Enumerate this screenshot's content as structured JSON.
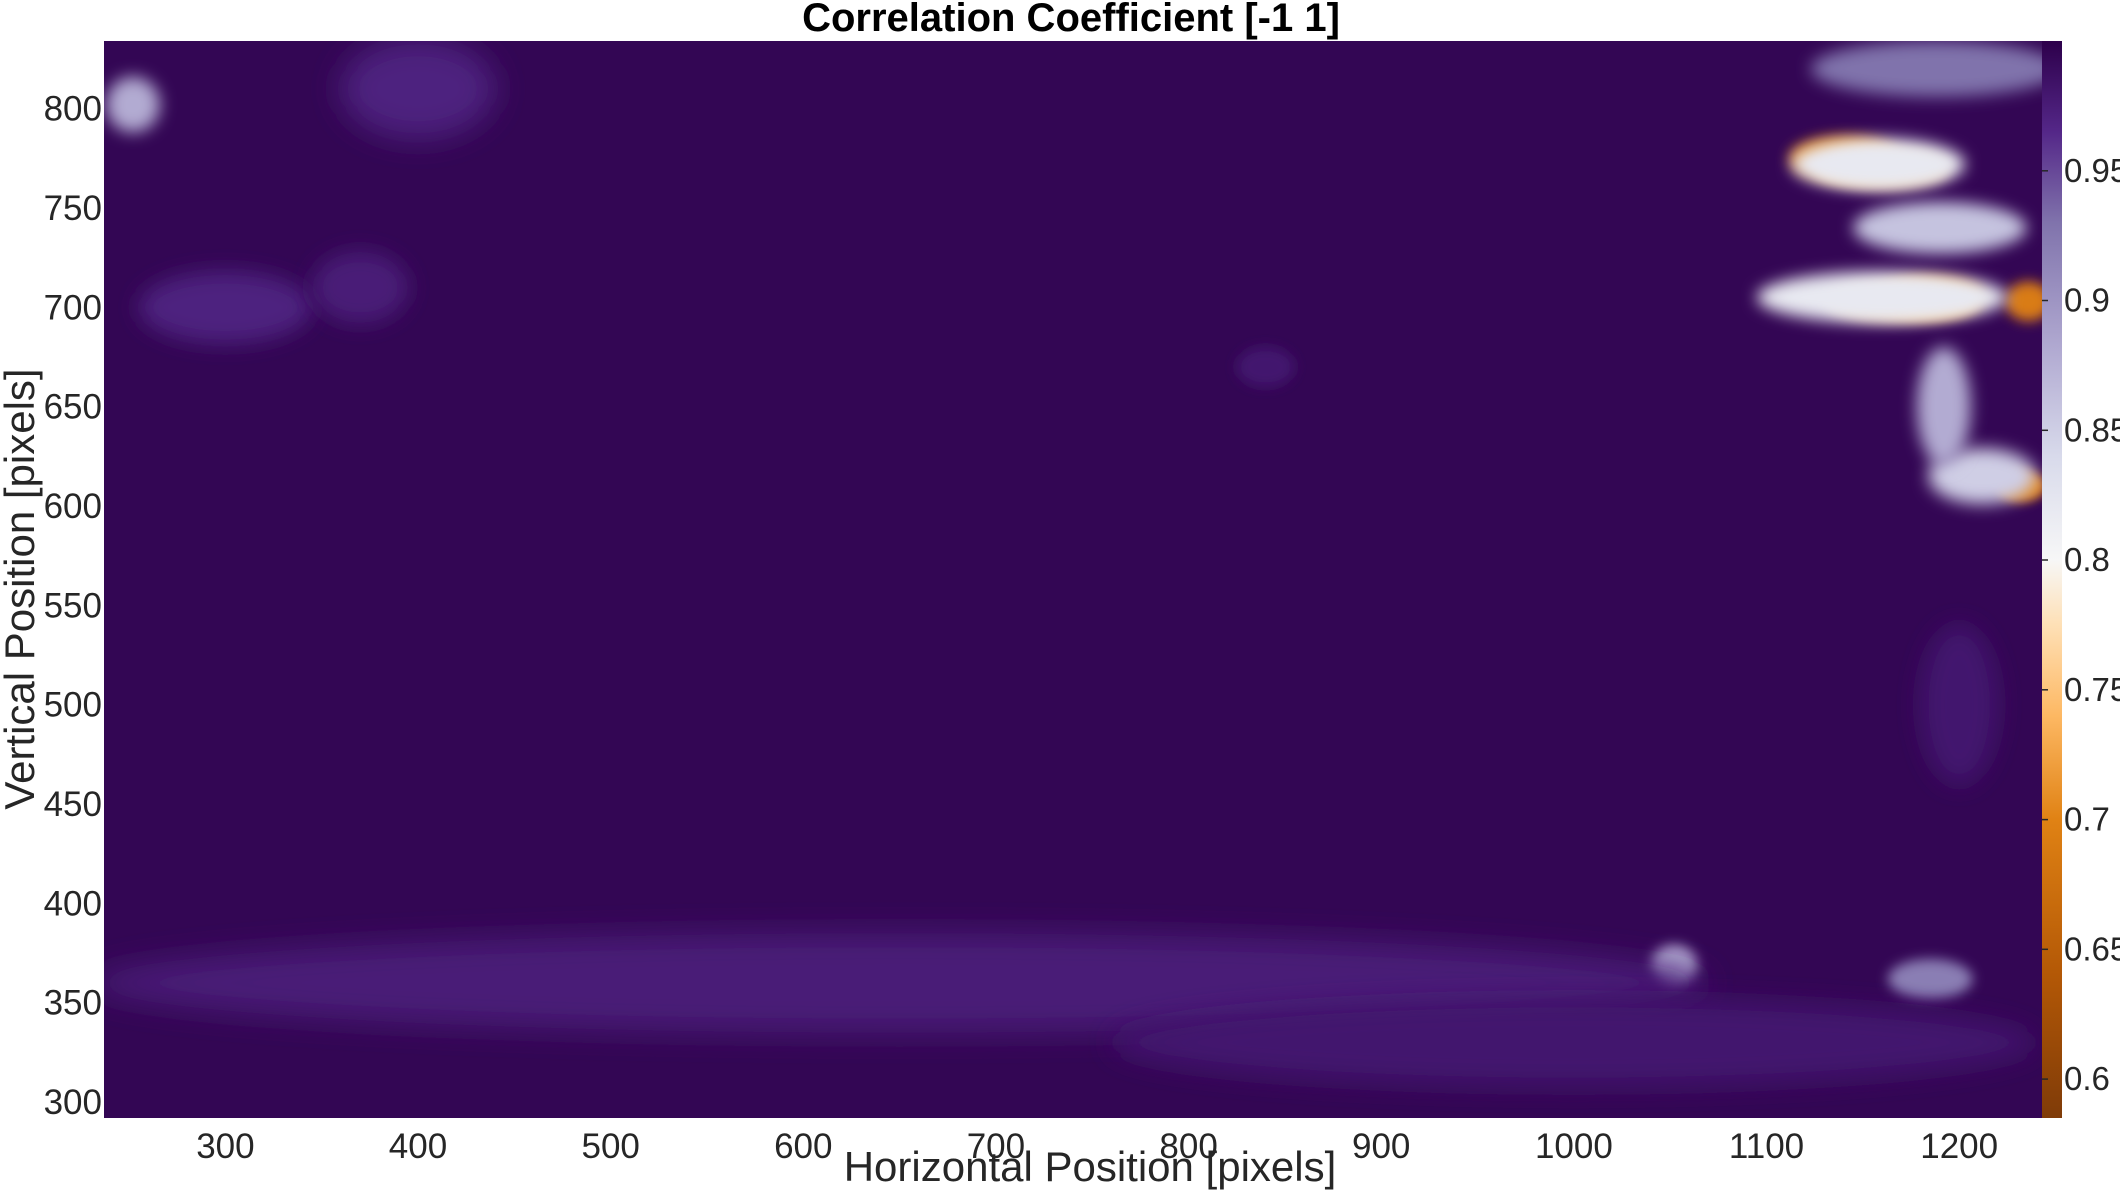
{
  "chart_data": {
    "type": "heatmap",
    "title": "Correlation Coefficient [-1 1]",
    "xlabel": "Horizontal Position [pixels]",
    "ylabel": "Vertical Position [pixels]",
    "xlim": [
      237,
      1243
    ],
    "ylim": [
      292,
      834
    ],
    "x_ticks": [
      300,
      400,
      500,
      600,
      700,
      800,
      900,
      1000,
      1100,
      1200
    ],
    "y_ticks": [
      300,
      350,
      400,
      450,
      500,
      550,
      600,
      650,
      700,
      750,
      800
    ],
    "colorbar": {
      "range": [
        0.585,
        1.0
      ],
      "ticks": [
        0.6,
        0.65,
        0.7,
        0.75,
        0.8,
        0.85,
        0.9,
        0.95
      ],
      "colormap": [
        {
          "value": 0.585,
          "color": "#7f3b08"
        },
        {
          "value": 0.64,
          "color": "#b35806"
        },
        {
          "value": 0.7,
          "color": "#e08214"
        },
        {
          "value": 0.74,
          "color": "#fdb863"
        },
        {
          "value": 0.775,
          "color": "#fee0b6"
        },
        {
          "value": 0.8,
          "color": "#f7f7f7"
        },
        {
          "value": 0.84,
          "color": "#d8daeb"
        },
        {
          "value": 0.88,
          "color": "#b2abd2"
        },
        {
          "value": 0.93,
          "color": "#8073ac"
        },
        {
          "value": 0.965,
          "color": "#542788"
        },
        {
          "value": 1.0,
          "color": "#2d004b"
        }
      ]
    },
    "background_value": 0.995,
    "features": [
      {
        "x": 1140,
        "y": 775,
        "rx": 28,
        "ry": 11,
        "value": 0.7
      },
      {
        "x": 1160,
        "y": 770,
        "rx": 35,
        "ry": 10,
        "value": 0.76
      },
      {
        "x": 1185,
        "y": 705,
        "rx": 28,
        "ry": 10,
        "value": 0.7
      },
      {
        "x": 1170,
        "y": 703,
        "rx": 40,
        "ry": 10,
        "value": 0.76
      },
      {
        "x": 1236,
        "y": 703,
        "rx": 12,
        "ry": 10,
        "value": 0.69
      },
      {
        "x": 1232,
        "y": 610,
        "rx": 13,
        "ry": 8,
        "value": 0.7
      },
      {
        "x": 1160,
        "y": 705,
        "rx": 65,
        "ry": 13,
        "value": 0.82
      },
      {
        "x": 1158,
        "y": 772,
        "rx": 45,
        "ry": 13,
        "value": 0.82
      },
      {
        "x": 1190,
        "y": 740,
        "rx": 45,
        "ry": 13,
        "value": 0.86
      },
      {
        "x": 1212,
        "y": 615,
        "rx": 28,
        "ry": 14,
        "value": 0.85
      },
      {
        "x": 1192,
        "y": 650,
        "rx": 14,
        "ry": 30,
        "value": 0.88
      },
      {
        "x": 1188,
        "y": 820,
        "rx": 65,
        "ry": 14,
        "value": 0.93
      },
      {
        "x": 252,
        "y": 802,
        "rx": 14,
        "ry": 14,
        "value": 0.88
      },
      {
        "x": 1052,
        "y": 369,
        "rx": 12,
        "ry": 10,
        "value": 0.88
      },
      {
        "x": 1185,
        "y": 362,
        "rx": 22,
        "ry": 10,
        "value": 0.92
      },
      {
        "x": 300,
        "y": 700,
        "rx": 45,
        "ry": 18,
        "value": 0.97
      },
      {
        "x": 400,
        "y": 810,
        "rx": 40,
        "ry": 25,
        "value": 0.97
      },
      {
        "x": 370,
        "y": 710,
        "rx": 25,
        "ry": 18,
        "value": 0.975
      },
      {
        "x": 650,
        "y": 360,
        "rx": 420,
        "ry": 25,
        "value": 0.975
      },
      {
        "x": 1000,
        "y": 330,
        "rx": 240,
        "ry": 22,
        "value": 0.98
      },
      {
        "x": 1200,
        "y": 500,
        "rx": 20,
        "ry": 40,
        "value": 0.98
      },
      {
        "x": 840,
        "y": 670,
        "rx": 15,
        "ry": 10,
        "value": 0.98
      }
    ]
  }
}
